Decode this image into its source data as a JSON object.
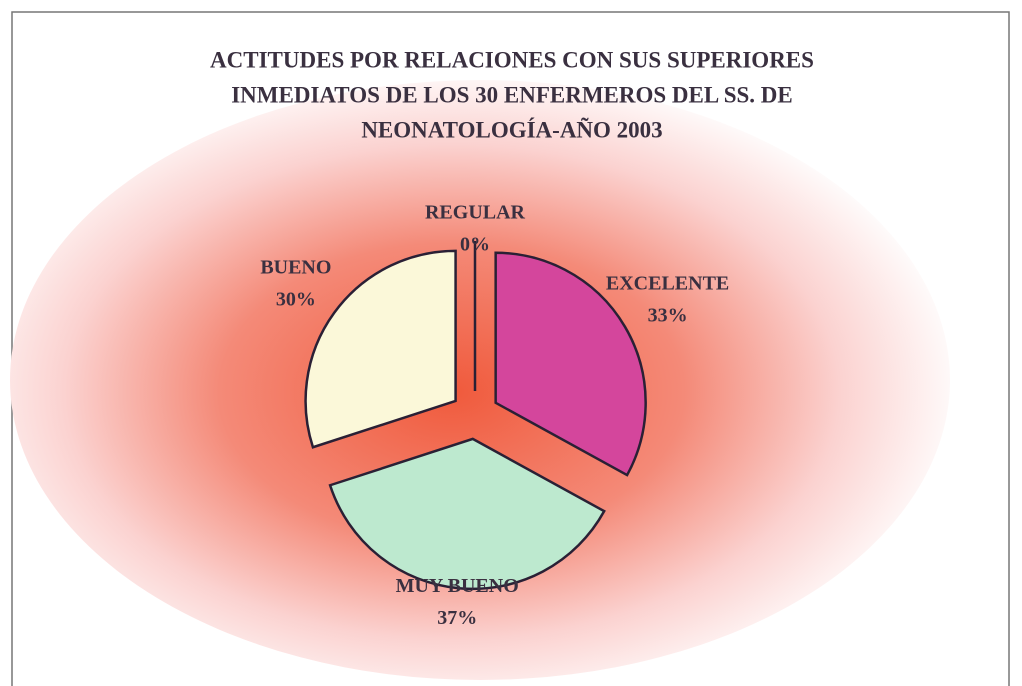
{
  "chart_data": {
    "type": "pie",
    "title": [
      "ACTITUDES  POR RELACIONES CON SUS SUPERIORES",
      "INMEDIATOS DE LOS 30 ENFERMEROS DEL SS. DE",
      "NEONATOLOGÍA-AÑO 2003"
    ],
    "categories": [
      "EXCELENTE",
      "MUY BUENO",
      "BUENO",
      "REGULAR"
    ],
    "values": [
      33,
      37,
      30,
      0
    ],
    "value_labels": [
      "33%",
      "37%",
      "30%",
      "0%"
    ],
    "colors": [
      "#d4469c",
      "#bde9cf",
      "#fbf8d9",
      "#ffffff"
    ]
  }
}
